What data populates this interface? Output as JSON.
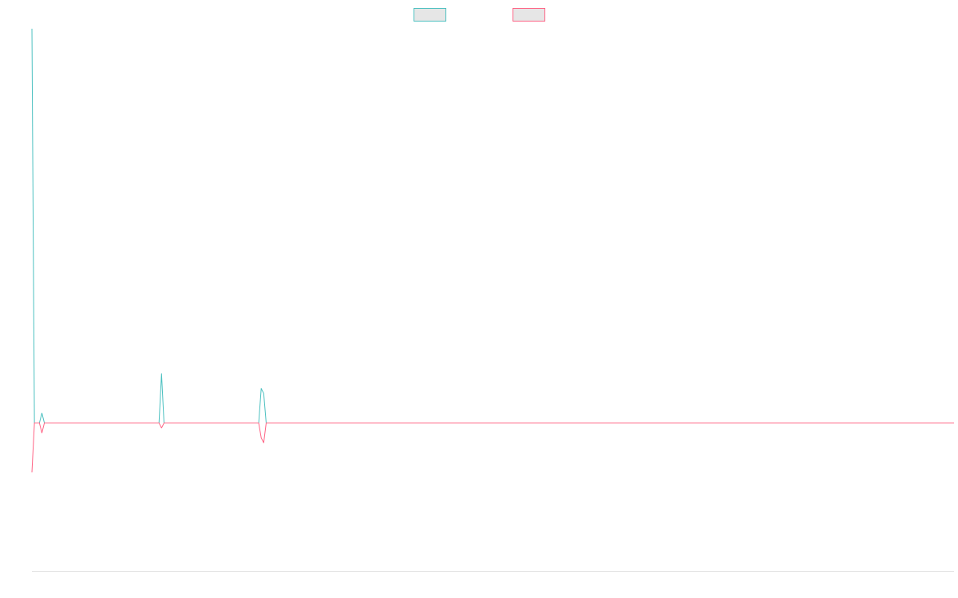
{
  "chart_data": {
    "type": "line",
    "title": "",
    "xlabel": "",
    "ylabel": "",
    "grid": false,
    "legend_position": "top-center",
    "ylim": [
      -3,
      8
    ],
    "series": [
      {
        "name": "",
        "color": "#4BC0C0",
        "fill": "#E6E6E6",
        "points": [
          [
            0,
            8
          ],
          [
            1,
            0
          ],
          [
            2,
            0
          ],
          [
            3,
            0
          ],
          [
            4,
            0.2
          ],
          [
            5,
            0
          ],
          [
            50,
            0
          ],
          [
            51,
            0
          ],
          [
            52,
            1
          ],
          [
            53,
            0
          ],
          [
            90,
            0
          ],
          [
            91,
            0
          ],
          [
            92,
            0.7
          ],
          [
            93,
            0.6
          ],
          [
            94,
            0
          ],
          [
            370,
            0
          ]
        ]
      },
      {
        "name": "",
        "color": "#FF6384",
        "fill": "#E6E6E6",
        "points": [
          [
            0,
            -1
          ],
          [
            1,
            0
          ],
          [
            2,
            0
          ],
          [
            3,
            0
          ],
          [
            4,
            -0.2
          ],
          [
            5,
            0
          ],
          [
            50,
            0
          ],
          [
            51,
            0
          ],
          [
            52,
            -0.1
          ],
          [
            53,
            0
          ],
          [
            90,
            0
          ],
          [
            91,
            0
          ],
          [
            92,
            -0.3
          ],
          [
            93,
            -0.4
          ],
          [
            94,
            0
          ],
          [
            370,
            0
          ]
        ]
      }
    ]
  }
}
